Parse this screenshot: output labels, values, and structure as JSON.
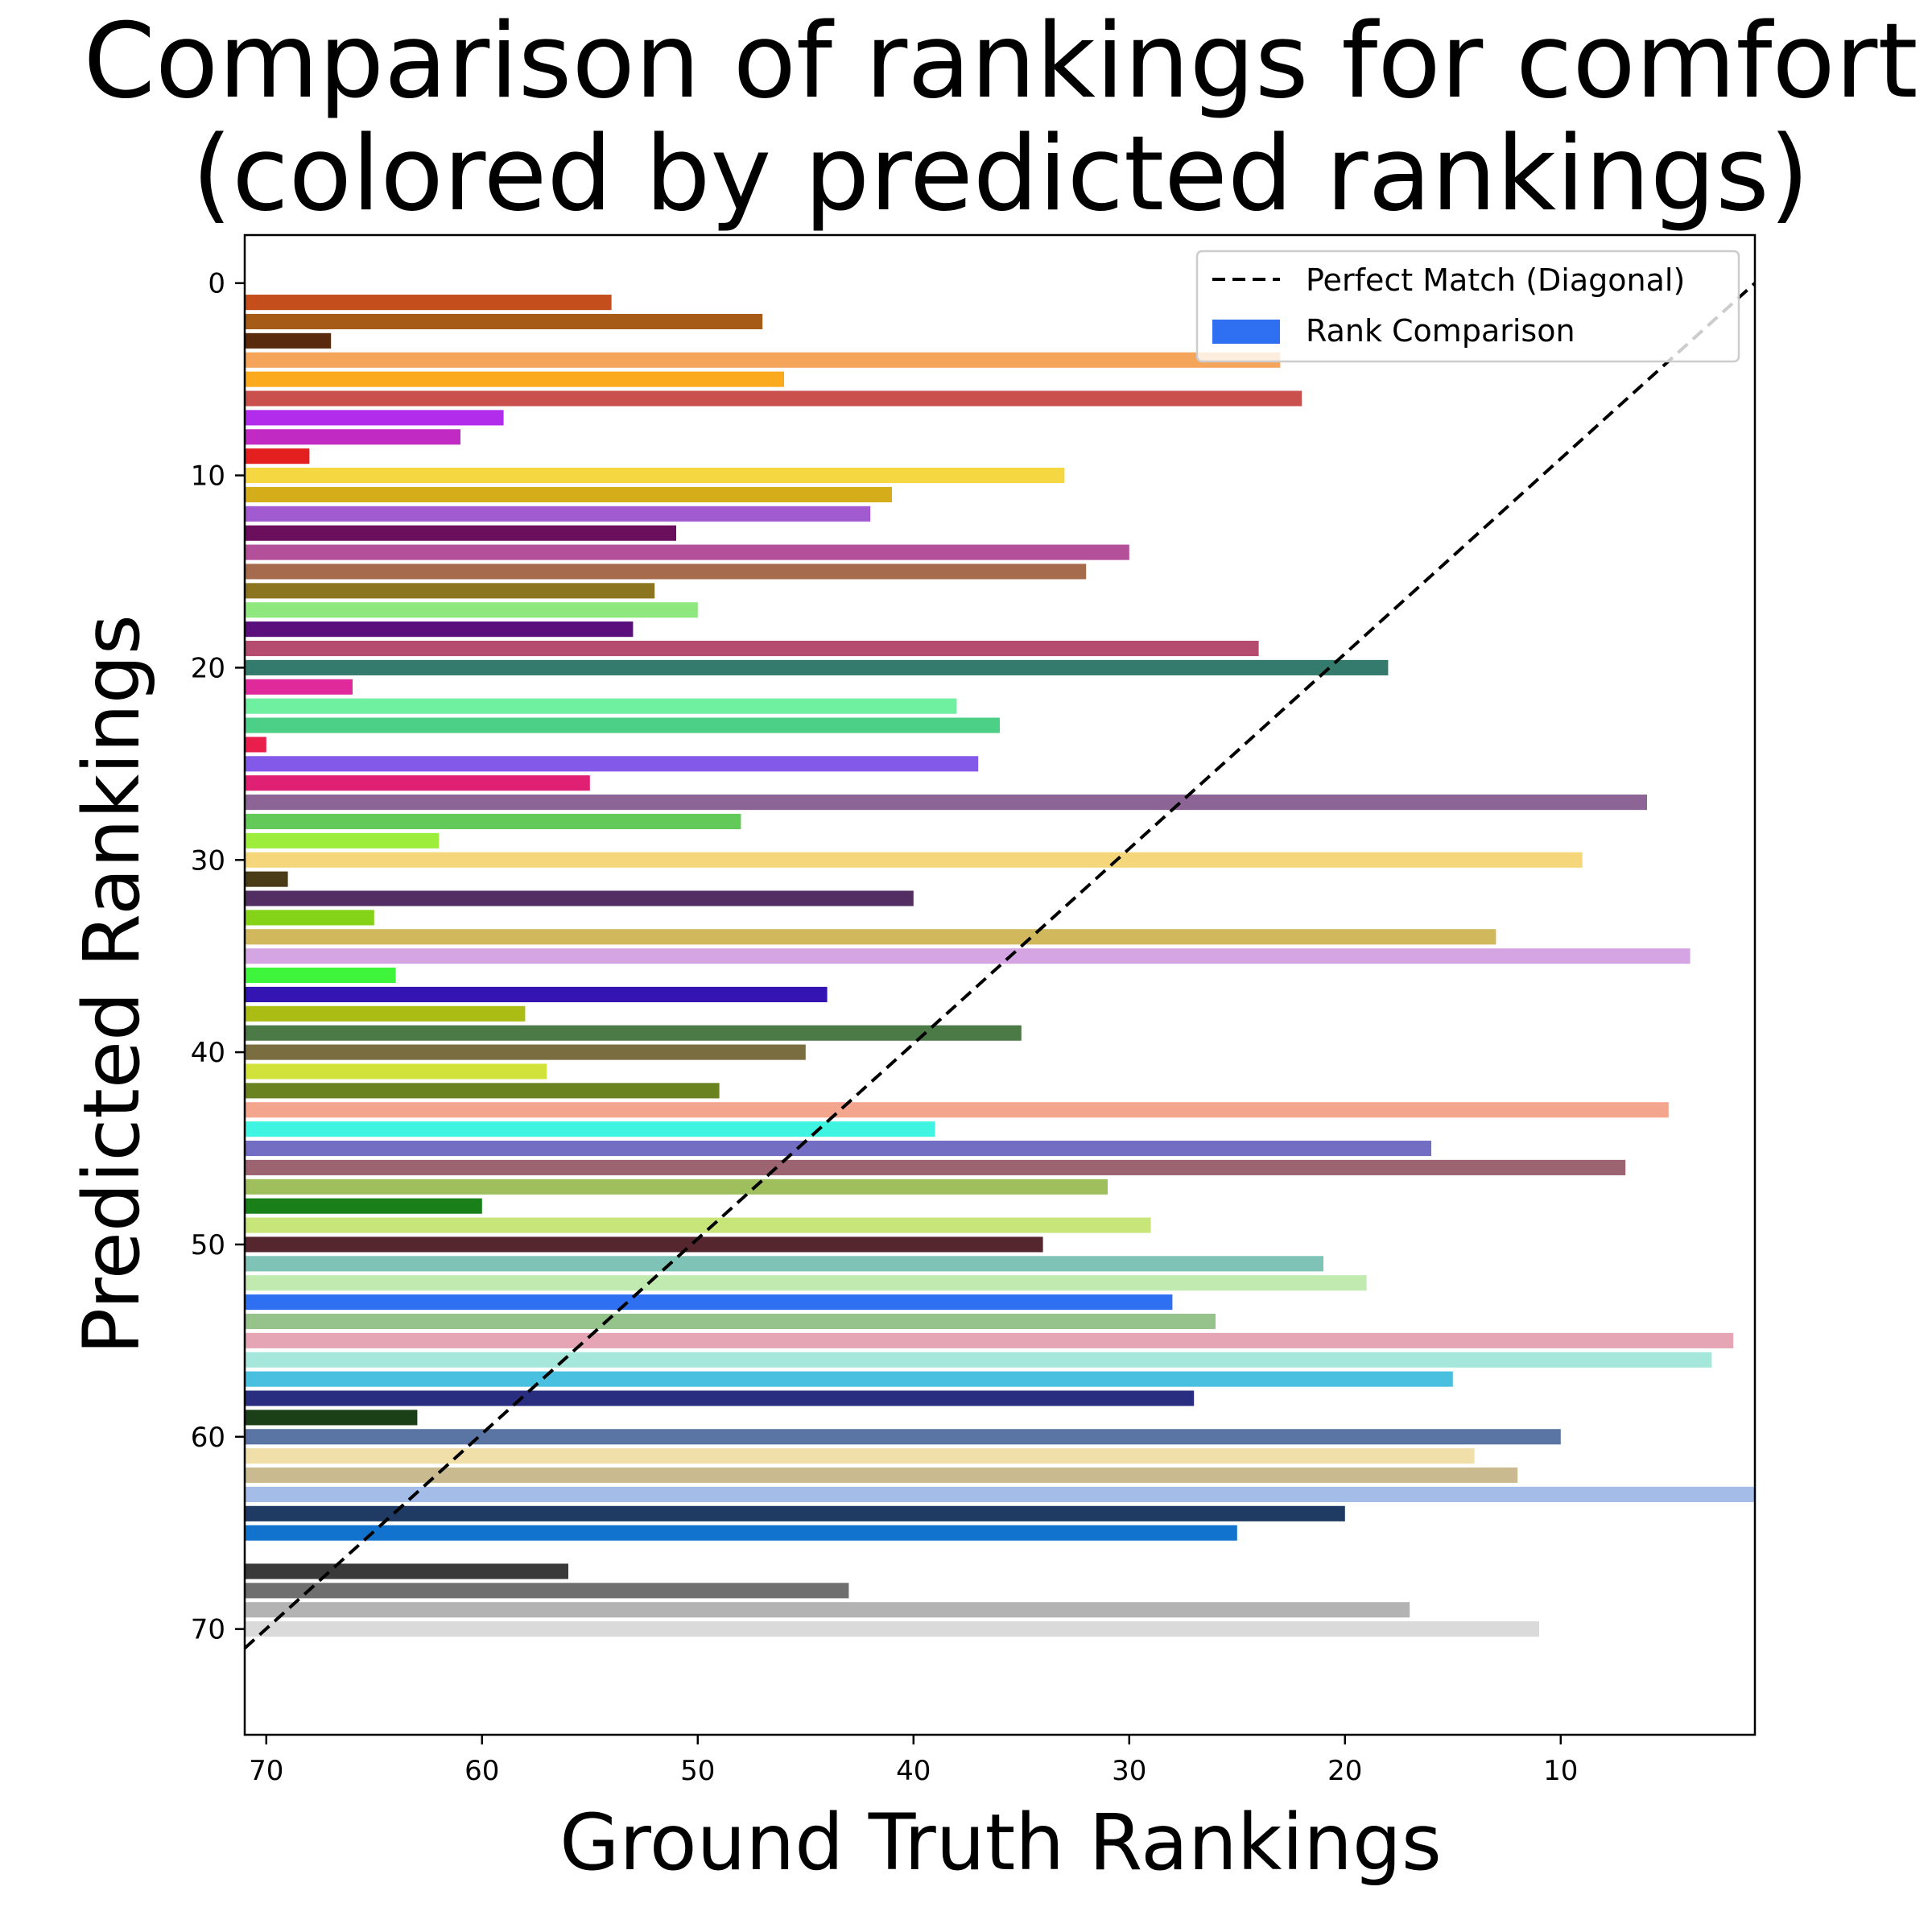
{
  "chart_data": {
    "type": "bar",
    "orientation": "horizontal",
    "title_lines": [
      "Comparison of rankings for comfort",
      "(colored by predicted rankings)"
    ],
    "xlabel": "Ground Truth Rankings",
    "ylabel": "Predicted Rankings",
    "xlim": [
      71,
      1
    ],
    "ylim": [
      75.5,
      -2.5
    ],
    "x_ticks": [
      70,
      60,
      50,
      40,
      30,
      20,
      10
    ],
    "y_ticks": [
      0,
      10,
      20,
      30,
      40,
      50,
      60,
      70
    ],
    "legend": {
      "position": "top-right",
      "entries": [
        {
          "label": "Perfect Match (Diagonal)",
          "style": "dashed-line",
          "color": "#000000"
        },
        {
          "label": "Rank Comparison",
          "style": "patch",
          "color": "#2f6ff2"
        }
      ]
    },
    "diagonal": {
      "from": [
        71,
        71
      ],
      "to": [
        0,
        0
      ],
      "style": "dashed",
      "color": "#000000"
    },
    "bars": [
      {
        "predicted": 1,
        "ground_truth": 54,
        "color": "#c44e1c"
      },
      {
        "predicted": 2,
        "ground_truth": 47,
        "color": "#a65b16"
      },
      {
        "predicted": 3,
        "ground_truth": 67,
        "color": "#5a2a0e"
      },
      {
        "predicted": 4,
        "ground_truth": 23,
        "color": "#f4a55a"
      },
      {
        "predicted": 5,
        "ground_truth": 46,
        "color": "#fbaa1e"
      },
      {
        "predicted": 6,
        "ground_truth": 22,
        "color": "#c9504c"
      },
      {
        "predicted": 7,
        "ground_truth": 59,
        "color": "#b22cec"
      },
      {
        "predicted": 8,
        "ground_truth": 61,
        "color": "#c12bc4"
      },
      {
        "predicted": 9,
        "ground_truth": 68,
        "color": "#e41f1f"
      },
      {
        "predicted": 10,
        "ground_truth": 33,
        "color": "#f5d742"
      },
      {
        "predicted": 11,
        "ground_truth": 41,
        "color": "#d5ad1b"
      },
      {
        "predicted": 12,
        "ground_truth": 42,
        "color": "#a25ad0"
      },
      {
        "predicted": 13,
        "ground_truth": 51,
        "color": "#6b0e5c"
      },
      {
        "predicted": 14,
        "ground_truth": 30,
        "color": "#b35099"
      },
      {
        "predicted": 15,
        "ground_truth": 32,
        "color": "#a66b4c"
      },
      {
        "predicted": 16,
        "ground_truth": 52,
        "color": "#8b7520"
      },
      {
        "predicted": 17,
        "ground_truth": 50,
        "color": "#8ee87e"
      },
      {
        "predicted": 18,
        "ground_truth": 53,
        "color": "#5a0f7c"
      },
      {
        "predicted": 19,
        "ground_truth": 24,
        "color": "#b54b6e"
      },
      {
        "predicted": 20,
        "ground_truth": 18,
        "color": "#347b6d"
      },
      {
        "predicted": 21,
        "ground_truth": 66,
        "color": "#e0299a"
      },
      {
        "predicted": 22,
        "ground_truth": 38,
        "color": "#6ef0a0"
      },
      {
        "predicted": 23,
        "ground_truth": 36,
        "color": "#4ccf87"
      },
      {
        "predicted": 24,
        "ground_truth": 70,
        "color": "#ea1e4a"
      },
      {
        "predicted": 25,
        "ground_truth": 37,
        "color": "#8359ea"
      },
      {
        "predicted": 26,
        "ground_truth": 55,
        "color": "#e02173"
      },
      {
        "predicted": 27,
        "ground_truth": 6,
        "color": "#8c6496"
      },
      {
        "predicted": 28,
        "ground_truth": 48,
        "color": "#63c958"
      },
      {
        "predicted": 29,
        "ground_truth": 62,
        "color": "#9ced3c"
      },
      {
        "predicted": 30,
        "ground_truth": 9,
        "color": "#f5d67a"
      },
      {
        "predicted": 31,
        "ground_truth": 69,
        "color": "#4a3c16"
      },
      {
        "predicted": 32,
        "ground_truth": 40,
        "color": "#532e63"
      },
      {
        "predicted": 33,
        "ground_truth": 65,
        "color": "#84d318"
      },
      {
        "predicted": 34,
        "ground_truth": 13,
        "color": "#d2b85c"
      },
      {
        "predicted": 35,
        "ground_truth": 4,
        "color": "#d5a5e3"
      },
      {
        "predicted": 36,
        "ground_truth": 64,
        "color": "#3ef53c"
      },
      {
        "predicted": 37,
        "ground_truth": 44,
        "color": "#3415b3"
      },
      {
        "predicted": 38,
        "ground_truth": 58,
        "color": "#abbd14"
      },
      {
        "predicted": 39,
        "ground_truth": 35,
        "color": "#4c7a47"
      },
      {
        "predicted": 40,
        "ground_truth": 45,
        "color": "#7a6e40"
      },
      {
        "predicted": 41,
        "ground_truth": 57,
        "color": "#d1e33a"
      },
      {
        "predicted": 42,
        "ground_truth": 49,
        "color": "#6a8220"
      },
      {
        "predicted": 43,
        "ground_truth": 5,
        "color": "#f4a58d"
      },
      {
        "predicted": 44,
        "ground_truth": 39,
        "color": "#3ff5e1"
      },
      {
        "predicted": 45,
        "ground_truth": 16,
        "color": "#736dc4"
      },
      {
        "predicted": 46,
        "ground_truth": 7,
        "color": "#9b6470"
      },
      {
        "predicted": 47,
        "ground_truth": 31,
        "color": "#9fbf5c"
      },
      {
        "predicted": 48,
        "ground_truth": 60,
        "color": "#198019"
      },
      {
        "predicted": 49,
        "ground_truth": 29,
        "color": "#c8e57a"
      },
      {
        "predicted": 50,
        "ground_truth": 34,
        "color": "#56262e"
      },
      {
        "predicted": 51,
        "ground_truth": 21,
        "color": "#7ec3b5"
      },
      {
        "predicted": 52,
        "ground_truth": 19,
        "color": "#c1eab1"
      },
      {
        "predicted": 53,
        "ground_truth": 28,
        "color": "#2f6ff2"
      },
      {
        "predicted": 54,
        "ground_truth": 26,
        "color": "#96c28b"
      },
      {
        "predicted": 55,
        "ground_truth": 2,
        "color": "#e5a5b4"
      },
      {
        "predicted": 56,
        "ground_truth": 3,
        "color": "#a5e8db"
      },
      {
        "predicted": 57,
        "ground_truth": 15,
        "color": "#4ac0e0"
      },
      {
        "predicted": 58,
        "ground_truth": 27,
        "color": "#2a2e80"
      },
      {
        "predicted": 59,
        "ground_truth": 63,
        "color": "#1b4018"
      },
      {
        "predicted": 60,
        "ground_truth": 10,
        "color": "#5a74a3"
      },
      {
        "predicted": 61,
        "ground_truth": 14,
        "color": "#f0dfa9"
      },
      {
        "predicted": 62,
        "ground_truth": 12,
        "color": "#c9ba8f"
      },
      {
        "predicted": 63,
        "ground_truth": 1,
        "color": "#a3bce8"
      },
      {
        "predicted": 64,
        "ground_truth": 20,
        "color": "#1f3a63"
      },
      {
        "predicted": 65,
        "ground_truth": 25,
        "color": "#1273cf"
      },
      {
        "predicted": 67,
        "ground_truth": 56,
        "color": "#3a3a3a"
      },
      {
        "predicted": 68,
        "ground_truth": 43,
        "color": "#6f6f6f"
      },
      {
        "predicted": 69,
        "ground_truth": 17,
        "color": "#b3b3b3"
      },
      {
        "predicted": 70,
        "ground_truth": 11,
        "color": "#dadada"
      }
    ]
  }
}
